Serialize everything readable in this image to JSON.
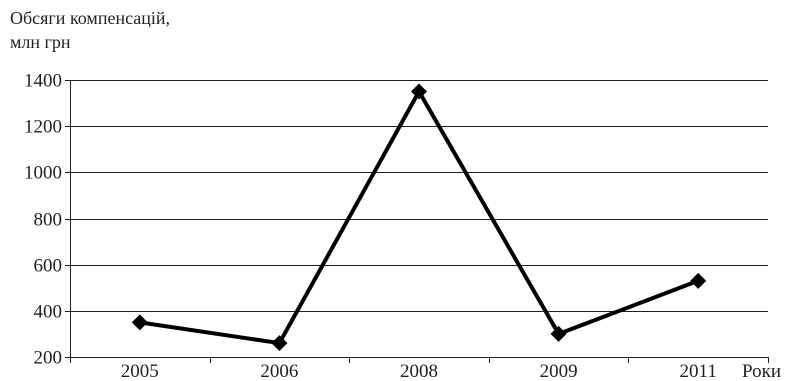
{
  "chart_data": {
    "type": "line",
    "ylabel_lines": [
      "Обсяги компенсацій,",
      "млн грн"
    ],
    "xlabel": "Роки",
    "categories": [
      "2005",
      "2006",
      "2008",
      "2009",
      "2011"
    ],
    "series": [
      {
        "values": [
          350,
          260,
          1350,
          300,
          530
        ]
      }
    ],
    "ylim": [
      200,
      1400
    ],
    "yticks": [
      200,
      400,
      600,
      800,
      1000,
      1200,
      1400
    ],
    "grid": true,
    "marker": "diamond",
    "line_color": "#000000",
    "grid_color": "#231f20"
  }
}
